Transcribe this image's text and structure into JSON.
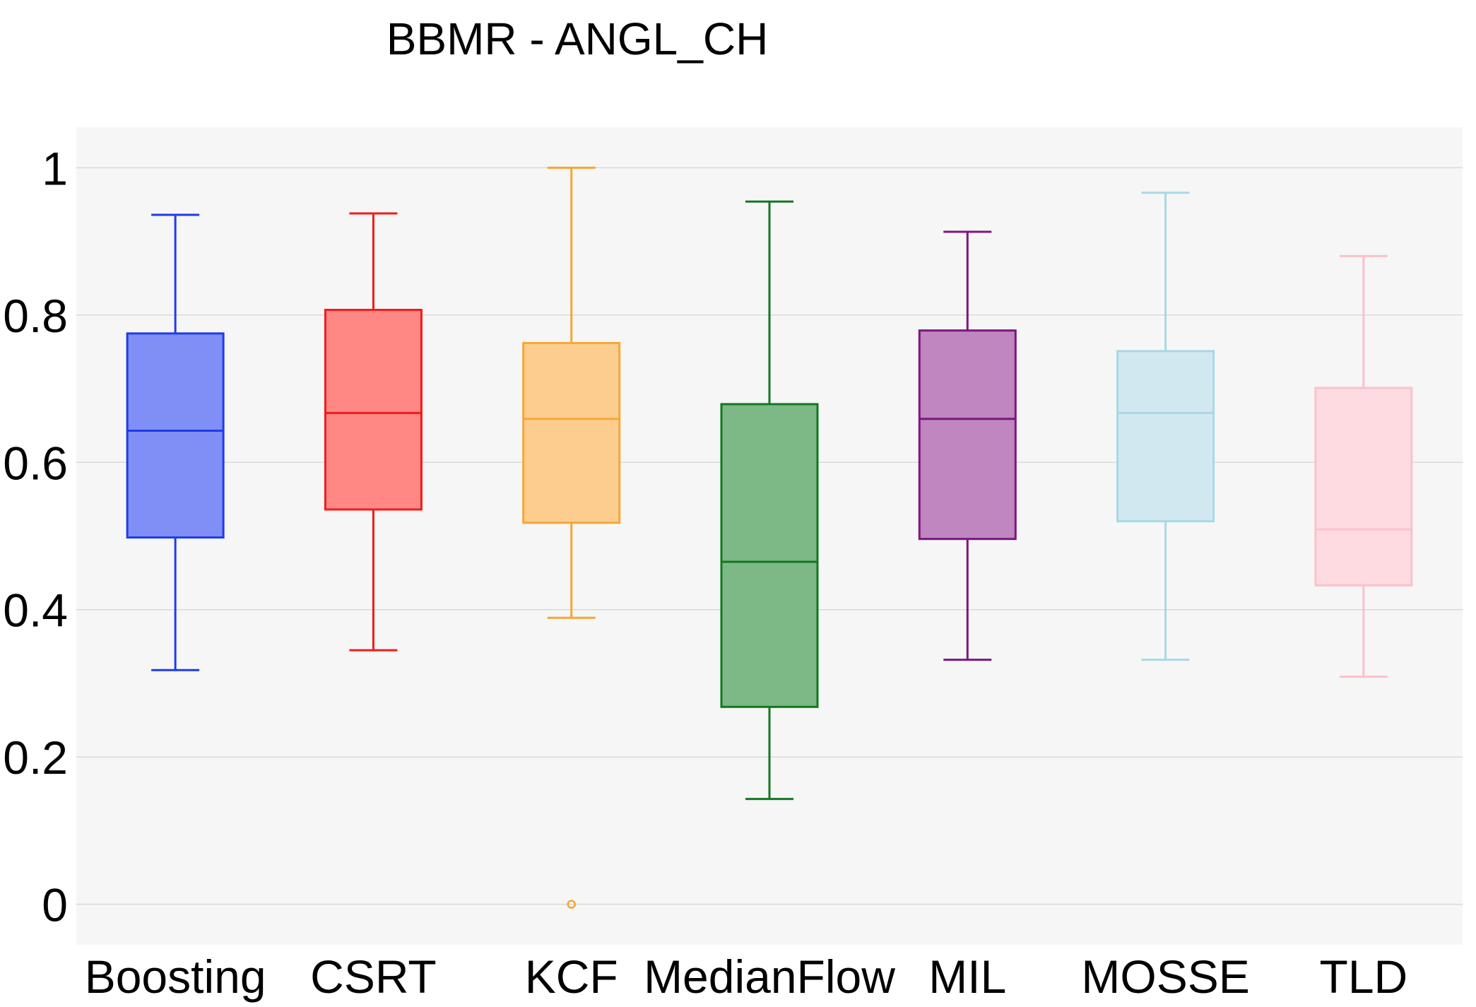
{
  "chart_data": {
    "type": "box",
    "title": "BBMR - ANGL_CH",
    "xlabel": "",
    "ylabel": "",
    "ylim": [
      -0.055,
      1.055
    ],
    "yticks": [
      0,
      0.2,
      0.4,
      0.6,
      0.8,
      1
    ],
    "ytick_labels": [
      "0",
      "0.2",
      "0.4",
      "0.6",
      "0.8",
      "1"
    ],
    "grid": true,
    "categories": [
      "Boosting",
      "CSRT",
      "KCF",
      "MedianFlow",
      "MIL",
      "MOSSE",
      "TLD"
    ],
    "series": [
      {
        "name": "Boosting",
        "color": "#1f3bea",
        "fill": "#7f8ff6",
        "whisker_low": 0.318,
        "q1": 0.498,
        "median": 0.643,
        "q3": 0.775,
        "whisker_high": 0.936,
        "outliers": []
      },
      {
        "name": "CSRT",
        "color": "#f21b1b",
        "fill": "#ff8784",
        "whisker_low": 0.345,
        "q1": 0.536,
        "median": 0.667,
        "q3": 0.807,
        "whisker_high": 0.938,
        "outliers": []
      },
      {
        "name": "KCF",
        "color": "#f7a634",
        "fill": "#fdcd8f",
        "whisker_low": 0.389,
        "q1": 0.518,
        "median": 0.659,
        "q3": 0.762,
        "whisker_high": 1.0,
        "outliers": [
          0.0
        ]
      },
      {
        "name": "MedianFlow",
        "color": "#12781e",
        "fill": "#7cb986",
        "whisker_low": 0.143,
        "q1": 0.268,
        "median": 0.465,
        "q3": 0.679,
        "whisker_high": 0.954,
        "outliers": []
      },
      {
        "name": "MIL",
        "color": "#7e1581",
        "fill": "#bf86bf",
        "whisker_low": 0.332,
        "q1": 0.496,
        "median": 0.659,
        "q3": 0.779,
        "whisker_high": 0.913,
        "outliers": []
      },
      {
        "name": "MOSSE",
        "color": "#a8d8e6",
        "fill": "#d2e8f0",
        "whisker_low": 0.332,
        "q1": 0.52,
        "median": 0.667,
        "q3": 0.751,
        "whisker_high": 0.966,
        "outliers": []
      },
      {
        "name": "TLD",
        "color": "#fcc0cb",
        "fill": "#fddbe1",
        "whisker_low": 0.309,
        "q1": 0.433,
        "median": 0.509,
        "q3": 0.701,
        "whisker_high": 0.88,
        "outliers": []
      }
    ]
  }
}
